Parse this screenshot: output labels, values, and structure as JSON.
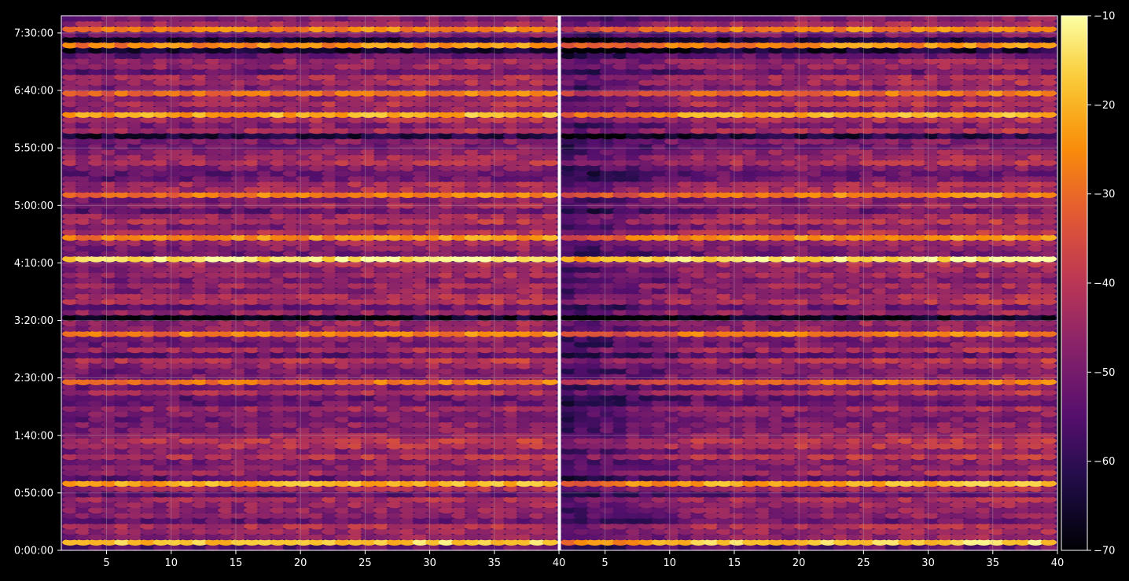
{
  "chart_data": {
    "type": "heatmap",
    "colormap": "inferno",
    "background": "#000000",
    "gridline_color": "#b0b0b0",
    "grid": true,
    "y_tick_labels": [
      "0:00:00",
      "0:50:00",
      "1:40:00",
      "2:30:00",
      "3:20:00",
      "4:10:00",
      "5:00:00",
      "5:50:00",
      "6:40:00",
      "7:30:00"
    ],
    "y_range_seconds": [
      0,
      27900
    ],
    "panels": [
      {
        "x_range": [
          1.5,
          40
        ],
        "x_ticks": [
          5,
          10,
          15,
          20,
          25,
          30,
          35,
          40
        ],
        "x_tick_labels": [
          "5",
          "10",
          "15",
          "20",
          "25",
          "30",
          "35",
          "40"
        ]
      },
      {
        "x_range": [
          1.5,
          40
        ],
        "x_ticks": [
          5,
          10,
          15,
          20,
          25,
          30,
          35,
          40
        ],
        "x_tick_labels": [
          "5",
          "10",
          "15",
          "20",
          "25",
          "30",
          "35",
          "40"
        ]
      }
    ],
    "colorbar": {
      "range": [
        -70,
        -10
      ],
      "ticks": [
        -70,
        -60,
        -50,
        -40,
        -30,
        -20,
        -10
      ],
      "tick_labels": [
        "−70",
        "−60",
        "−50",
        "−40",
        "−30",
        "−20",
        "−10"
      ]
    },
    "bright_rows": [
      {
        "t_seconds": 420,
        "level": -18
      },
      {
        "t_seconds": 3500,
        "level": -22
      },
      {
        "t_seconds": 8700,
        "level": -30
      },
      {
        "t_seconds": 11200,
        "level": -28
      },
      {
        "t_seconds": 15300,
        "level": -14
      },
      {
        "t_seconds": 16400,
        "level": -25
      },
      {
        "t_seconds": 18600,
        "level": -28
      },
      {
        "t_seconds": 22600,
        "level": -22
      },
      {
        "t_seconds": 23900,
        "level": -30
      },
      {
        "t_seconds": 26500,
        "level": -26
      },
      {
        "t_seconds": 27250,
        "level": -28
      }
    ],
    "dark_rows": [
      {
        "t_seconds": 12000,
        "level": -68
      },
      {
        "t_seconds": 21700,
        "level": -64
      },
      {
        "t_seconds": 26000,
        "level": -66
      },
      {
        "t_seconds": 26700,
        "level": -64
      }
    ]
  }
}
